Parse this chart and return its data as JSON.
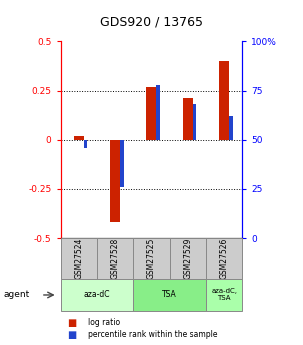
{
  "title": "GDS920 / 13765",
  "samples": [
    "GSM27524",
    "GSM27528",
    "GSM27525",
    "GSM27529",
    "GSM27526"
  ],
  "log_ratios": [
    0.02,
    -0.42,
    0.27,
    0.21,
    0.4
  ],
  "percentile_ranks": [
    46,
    26,
    78,
    68,
    62
  ],
  "bar_color_red": "#cc2200",
  "bar_color_blue": "#2244cc",
  "ylim_left": [
    -0.5,
    0.5
  ],
  "ylim_right": [
    0,
    100
  ],
  "yticks_left": [
    -0.5,
    -0.25,
    0.0,
    0.25,
    0.5
  ],
  "yticks_right": [
    0,
    25,
    50,
    75,
    100
  ],
  "ytick_labels_left": [
    "-0.5",
    "-0.25",
    "0",
    "0.25",
    "0.5"
  ],
  "ytick_labels_right": [
    "0",
    "25",
    "50",
    "75",
    "100%"
  ],
  "hlines": [
    -0.25,
    0.0,
    0.25
  ],
  "legend_items": [
    {
      "color": "#cc2200",
      "label": "log ratio"
    },
    {
      "color": "#2244cc",
      "label": "percentile rank within the sample"
    }
  ],
  "agent_label": "agent",
  "background_color": "#ffffff",
  "plot_bg_color": "#ffffff",
  "sample_box_color": "#cccccc",
  "group_defs": [
    {
      "start": 0,
      "end": 1,
      "label": "aza-dC",
      "color": "#ccffcc"
    },
    {
      "start": 2,
      "end": 3,
      "label": "TSA",
      "color": "#88ee88"
    },
    {
      "start": 4,
      "end": 4,
      "label": "aza-dC,\nTSA",
      "color": "#aaffaa"
    }
  ]
}
